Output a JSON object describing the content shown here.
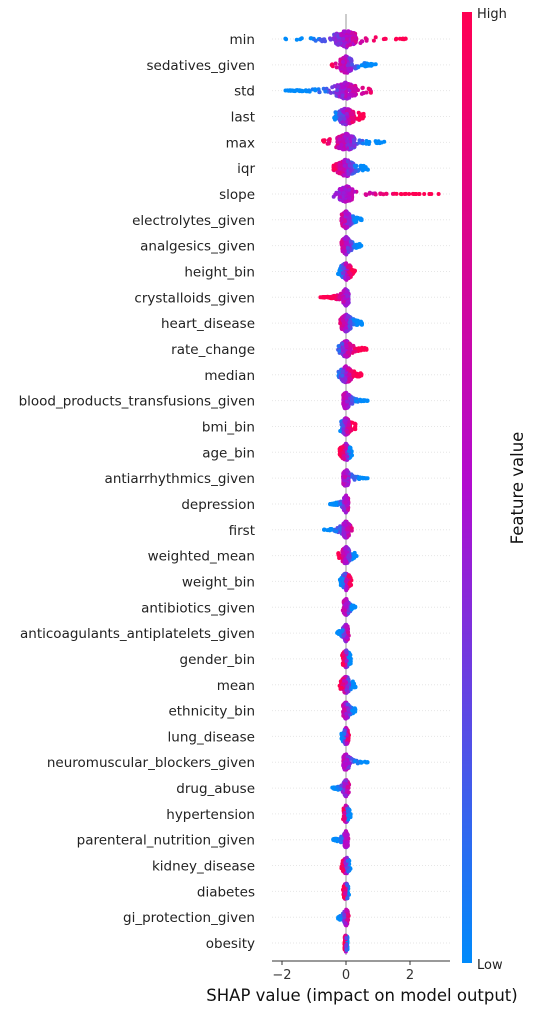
{
  "chart_data": {
    "type": "scatter",
    "subtype": "beeswarm",
    "xlabel": "SHAP value (impact on model output)",
    "xticks": [
      -2,
      0,
      2
    ],
    "xlim": [
      -2.3,
      3.2
    ],
    "grid": false,
    "colorbar": {
      "title": "Feature value",
      "high_label": "High",
      "low_label": "Low",
      "low_color": "#008bfb",
      "mid_color": "#b10bcf",
      "high_color": "#ff0052"
    },
    "features": [
      {
        "name": "min",
        "min": -1.9,
        "max": 1.9,
        "lo_side": 1,
        "spread": 0.55
      },
      {
        "name": "sedatives_given",
        "min": -0.45,
        "max": 0.95,
        "lo_side": -1,
        "spread": 0.3
      },
      {
        "name": "std",
        "min": -1.9,
        "max": 0.9,
        "lo_side": 1,
        "spread": 0.5
      },
      {
        "name": "last",
        "min": -0.4,
        "max": 0.6,
        "lo_side": 1,
        "spread": 0.4
      },
      {
        "name": "max",
        "min": -0.8,
        "max": 1.2,
        "lo_side": -1,
        "spread": 0.45
      },
      {
        "name": "iqr",
        "min": -0.4,
        "max": 0.7,
        "lo_side": -1,
        "spread": 0.35
      },
      {
        "name": "slope",
        "min": -0.4,
        "max": 3.0,
        "lo_side": 1,
        "spread": 0.35
      },
      {
        "name": "electrolytes_given",
        "min": -0.15,
        "max": 0.5,
        "lo_side": -1,
        "spread": 0.2
      },
      {
        "name": "analgesics_given",
        "min": -0.15,
        "max": 0.5,
        "lo_side": -1,
        "spread": 0.2
      },
      {
        "name": "height_bin",
        "min": -0.25,
        "max": 0.3,
        "lo_side": 1,
        "spread": 0.25
      },
      {
        "name": "crystalloids_given",
        "min": -0.85,
        "max": 0.1,
        "lo_side": -1,
        "spread": 0.15
      },
      {
        "name": "heart_disease",
        "min": -0.25,
        "max": 0.5,
        "lo_side": -1,
        "spread": 0.25
      },
      {
        "name": "rate_change",
        "min": -0.25,
        "max": 0.65,
        "lo_side": 1,
        "spread": 0.22
      },
      {
        "name": "median",
        "min": -0.25,
        "max": 0.5,
        "lo_side": 1,
        "spread": 0.22
      },
      {
        "name": "blood_products_transfusions_given",
        "min": -0.1,
        "max": 0.7,
        "lo_side": -1,
        "spread": 0.15
      },
      {
        "name": "bmi_bin",
        "min": -0.2,
        "max": 0.3,
        "lo_side": 1,
        "spread": 0.22
      },
      {
        "name": "age_bin",
        "min": -0.2,
        "max": 0.2,
        "lo_side": -1,
        "spread": 0.2
      },
      {
        "name": "antiarrhythmics_given",
        "min": -0.1,
        "max": 0.7,
        "lo_side": -1,
        "spread": 0.15
      },
      {
        "name": "depression",
        "min": -0.5,
        "max": 0.1,
        "lo_side": 1,
        "spread": 0.12
      },
      {
        "name": "first",
        "min": -0.7,
        "max": 0.2,
        "lo_side": 1,
        "spread": 0.15
      },
      {
        "name": "weighted_mean",
        "min": -0.25,
        "max": 0.35,
        "lo_side": -1,
        "spread": 0.2
      },
      {
        "name": "weight_bin",
        "min": -0.2,
        "max": 0.2,
        "lo_side": 1,
        "spread": 0.2
      },
      {
        "name": "antibiotics_given",
        "min": -0.1,
        "max": 0.3,
        "lo_side": -1,
        "spread": 0.12
      },
      {
        "name": "anticoagulants_antiplatelets_given",
        "min": -0.3,
        "max": 0.1,
        "lo_side": 1,
        "spread": 0.12
      },
      {
        "name": "gender_bin",
        "min": -0.15,
        "max": 0.15,
        "lo_side": -1,
        "spread": 0.18
      },
      {
        "name": "mean",
        "min": -0.2,
        "max": 0.3,
        "lo_side": -1,
        "spread": 0.2
      },
      {
        "name": "ethnicity_bin",
        "min": -0.1,
        "max": 0.3,
        "lo_side": -1,
        "spread": 0.15
      },
      {
        "name": "lung_disease",
        "min": -0.15,
        "max": 0.1,
        "lo_side": 1,
        "spread": 0.1
      },
      {
        "name": "neuromuscular_blockers_given",
        "min": -0.1,
        "max": 0.7,
        "lo_side": -1,
        "spread": 0.15
      },
      {
        "name": "drug_abuse",
        "min": -0.45,
        "max": 0.1,
        "lo_side": 1,
        "spread": 0.1
      },
      {
        "name": "hypertension",
        "min": -0.1,
        "max": 0.15,
        "lo_side": -1,
        "spread": 0.12
      },
      {
        "name": "parenteral_nutrition_given",
        "min": -0.4,
        "max": 0.1,
        "lo_side": 1,
        "spread": 0.1
      },
      {
        "name": "kidney_disease",
        "min": -0.15,
        "max": 0.15,
        "lo_side": -1,
        "spread": 0.15
      },
      {
        "name": "diabetes",
        "min": -0.1,
        "max": 0.1,
        "lo_side": -1,
        "spread": 0.12
      },
      {
        "name": "gi_protection_given",
        "min": -0.25,
        "max": 0.1,
        "lo_side": 1,
        "spread": 0.1
      },
      {
        "name": "obesity",
        "min": -0.05,
        "max": 0.05,
        "lo_side": -1,
        "spread": 0.08
      }
    ]
  }
}
